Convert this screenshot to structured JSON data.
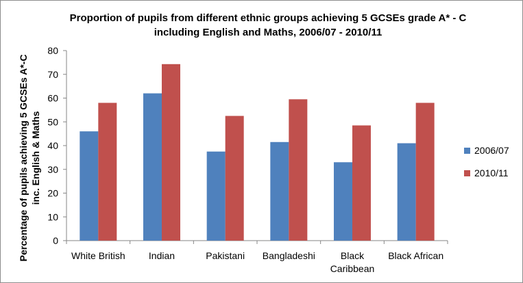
{
  "colors": {
    "series_2006": "#4f81bd",
    "series_2010": "#c0504d",
    "axis": "#868686"
  },
  "chart_data": {
    "type": "bar",
    "title": [
      "Proportion of pupils from different ethnic groups achieving 5 GCSEs grade A* - C",
      "including English and Maths, 2006/07 - 2010/11"
    ],
    "ylabel": [
      "Percentage of pupils achieving 5 GCSEs A*-C",
      "inc. English & Maths"
    ],
    "xlabel": "",
    "categories": [
      [
        "White British"
      ],
      [
        "Indian"
      ],
      [
        "Pakistani"
      ],
      [
        "Bangladeshi"
      ],
      [
        "Black",
        "Caribbean"
      ],
      [
        "Black African"
      ]
    ],
    "series": [
      {
        "name": "2006/07",
        "values": [
          46,
          62,
          37.5,
          41.5,
          33,
          41
        ]
      },
      {
        "name": "2010/11",
        "values": [
          58,
          74.3,
          52.5,
          59.5,
          48.5,
          58
        ]
      }
    ],
    "ylim": [
      0,
      80
    ],
    "yticks": [
      "0",
      "10",
      "20",
      "30",
      "40",
      "50",
      "60",
      "70",
      "80"
    ],
    "grid": false,
    "legend": "right"
  }
}
